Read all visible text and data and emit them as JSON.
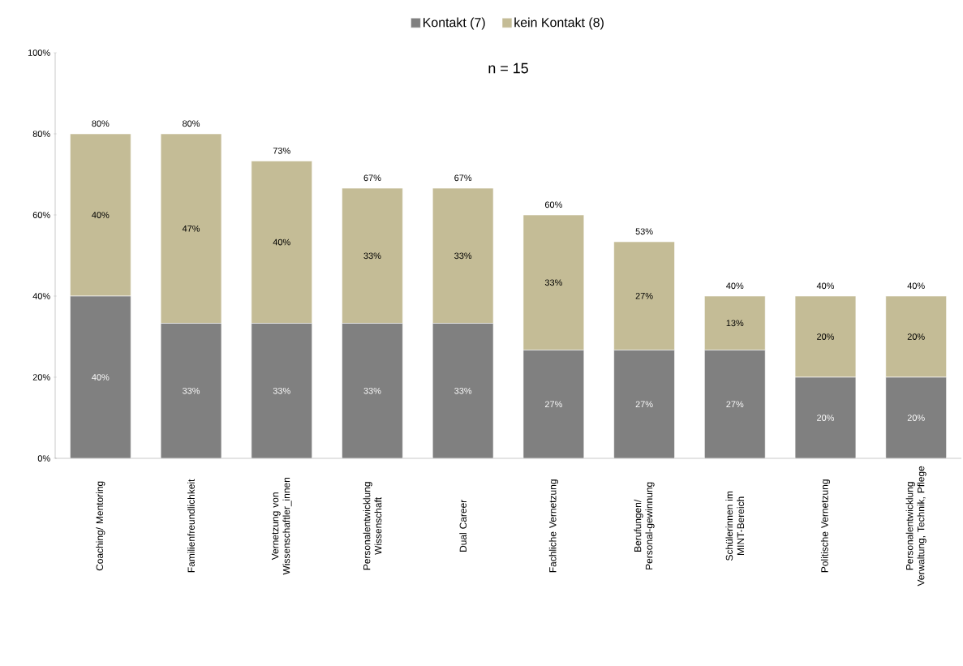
{
  "chart_data": {
    "type": "bar",
    "stacked": true,
    "title": "n = 15",
    "categories": [
      "Coaching/ Mentoring",
      "Familienfreundlichkeit",
      "Vernetzung von Wissenschaftler_innen",
      "Personalentwicklung Wissenschaft",
      "Dual Career",
      "Fachliche Vernetzung",
      "Berufungen/ Personal-gewinnung",
      "Schülerinnen im MINT-Bereich",
      "Politische Vernetzung",
      "Personalentwicklung Verwaltung, Technik, Pflege"
    ],
    "series": [
      {
        "name": "Kontakt (7)",
        "color": "#808080",
        "values": [
          40,
          33.3,
          33.3,
          33.3,
          33.3,
          26.7,
          26.7,
          26.7,
          20,
          20
        ],
        "value_labels": [
          "40%",
          "33%",
          "33%",
          "33%",
          "33%",
          "27%",
          "27%",
          "27%",
          "20%",
          "20%"
        ]
      },
      {
        "name": "kein Kontakt (8)",
        "color": "#c4bc96",
        "values": [
          40,
          46.7,
          40,
          33.3,
          33.3,
          33.3,
          26.7,
          13.3,
          20,
          20
        ],
        "value_labels": [
          "40%",
          "47%",
          "40%",
          "33%",
          "33%",
          "33%",
          "27%",
          "13%",
          "20%",
          "20%"
        ]
      }
    ],
    "totals": [
      "80%",
      "80%",
      "73%",
      "67%",
      "67%",
      "60%",
      "53%",
      "40%",
      "40%",
      "40%"
    ],
    "ylim": [
      0,
      100
    ],
    "yticks": [
      {
        "value": 0,
        "label": "0%"
      },
      {
        "value": 20,
        "label": "20%"
      },
      {
        "value": 40,
        "label": "40%"
      },
      {
        "value": 60,
        "label": "60%"
      },
      {
        "value": 80,
        "label": "80%"
      },
      {
        "value": 100,
        "label": "100%"
      }
    ],
    "grid": false,
    "legend": "top"
  }
}
